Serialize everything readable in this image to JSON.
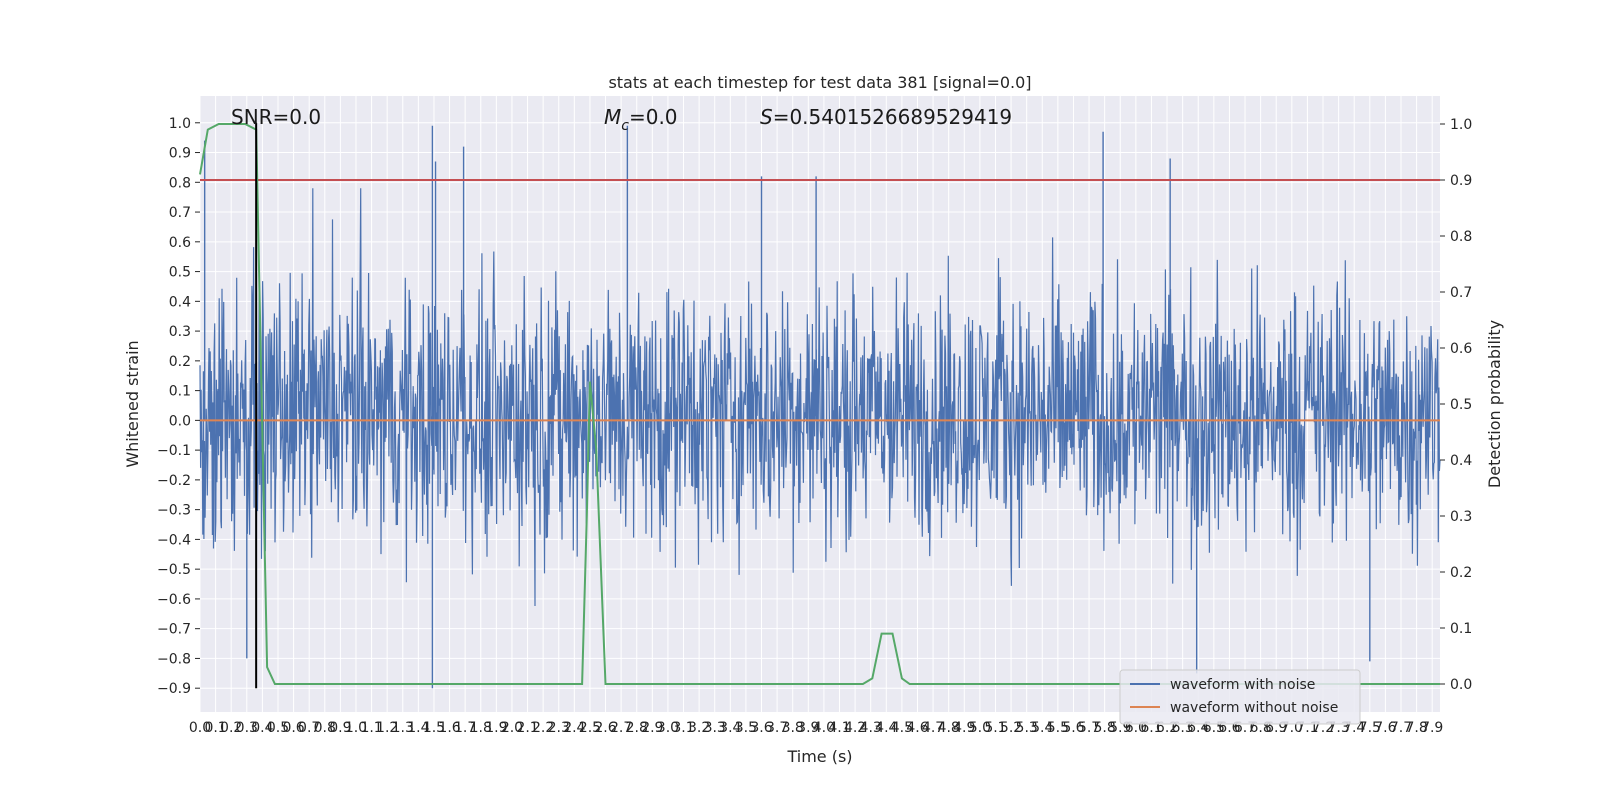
{
  "chart_data": {
    "type": "line",
    "title": "stats at each timestep for test data 381 [signal=0.0]",
    "xlabel": "Time (s)",
    "ylabel": "Whitened strain",
    "y2label": "Detection probability",
    "xlim": [
      0.0,
      7.95
    ],
    "ylim": [
      -0.98,
      1.09
    ],
    "y2lim": [
      -0.05,
      1.05
    ],
    "grid": true,
    "x_tick_labels": [
      "0.0",
      "0.1",
      "0.2",
      "0.3",
      "0.4",
      "0.5",
      "0.6",
      "0.7",
      "0.8",
      "0.9",
      "1.0",
      "1.1",
      "1.2",
      "1.3",
      "1.4",
      "1.5",
      "1.6",
      "1.7",
      "1.8",
      "1.9",
      "2.0",
      "2.1",
      "2.2",
      "2.3",
      "2.4",
      "2.5",
      "2.6",
      "2.7",
      "2.8",
      "2.9",
      "3.0",
      "3.1",
      "3.2",
      "3.3",
      "3.4",
      "3.5",
      "3.6",
      "3.7",
      "3.8",
      "3.9",
      "4.0",
      "4.1",
      "4.2",
      "4.3",
      "4.4",
      "4.5",
      "4.6",
      "4.7",
      "4.8",
      "4.9",
      "5.0",
      "5.1",
      "5.2",
      "5.3",
      "5.4",
      "5.5",
      "5.6",
      "5.7",
      "5.8",
      "5.9",
      "6.0",
      "6.1",
      "6.2",
      "6.3",
      "6.4",
      "6.5",
      "6.6",
      "6.7",
      "6.8",
      "6.9",
      "7.0",
      "7.1",
      "7.2",
      "7.3",
      "7.4",
      "7.5",
      "7.6",
      "7.7",
      "7.8",
      "7.9"
    ],
    "y_tick_labels": [
      "1.0",
      "0.9",
      "0.8",
      "0.7",
      "0.6",
      "0.5",
      "0.4",
      "0.3",
      "0.2",
      "0.1",
      "0.0",
      "−0.1",
      "−0.2",
      "−0.3",
      "−0.4",
      "−0.5",
      "−0.6",
      "−0.7",
      "−0.8",
      "−0.9"
    ],
    "y_ticks": [
      1.0,
      0.9,
      0.8,
      0.7,
      0.6,
      0.5,
      0.4,
      0.3,
      0.2,
      0.1,
      0.0,
      -0.1,
      -0.2,
      -0.3,
      -0.4,
      -0.5,
      -0.6,
      -0.7,
      -0.8,
      -0.9
    ],
    "y2_tick_labels": [
      "1.0",
      "0.9",
      "0.8",
      "0.7",
      "0.6",
      "0.5",
      "0.4",
      "0.3",
      "0.2",
      "0.1",
      "0.0"
    ],
    "y2_ticks": [
      1.0,
      0.9,
      0.8,
      0.7,
      0.6,
      0.5,
      0.4,
      0.3,
      0.2,
      0.1,
      0.0
    ],
    "annotations": {
      "snr": "SNR=0.0",
      "mc": "M",
      "mc_sub": "c",
      "mc_value": "=0.0",
      "s": "S",
      "s_value": "=0.5401526689529419"
    },
    "legend_position": "lower right",
    "series": [
      {
        "name": "waveform with noise",
        "color": "#4c72b0",
        "axis": "left",
        "description_peaks": [
          [
            0.03,
            0.94
          ],
          [
            1.49,
            0.99
          ],
          [
            1.51,
            0.87
          ],
          [
            1.69,
            0.92
          ],
          [
            2.74,
            0.99
          ],
          [
            3.6,
            0.82
          ],
          [
            3.95,
            0.82
          ],
          [
            5.79,
            0.97
          ],
          [
            6.22,
            0.88
          ],
          [
            1.49,
            -0.9
          ],
          [
            6.39,
            -0.85
          ],
          [
            7.5,
            -0.81
          ],
          [
            0.3,
            -0.8
          ]
        ],
        "upper_envelope": 0.55,
        "lower_envelope": -0.5
      },
      {
        "name": "waveform without noise",
        "color": "#dd8452",
        "axis": "left",
        "x": [
          0.0,
          7.95
        ],
        "y": [
          0.0,
          0.0
        ]
      },
      {
        "color": "#55a868",
        "axis": "right",
        "x": [
          0.0,
          0.05,
          0.12,
          0.2,
          0.29,
          0.36,
          0.43,
          0.48,
          2.4,
          2.45,
          2.48,
          2.5,
          2.54,
          2.6,
          2.65,
          4.25,
          4.31,
          4.37,
          4.44,
          4.5,
          4.55,
          7.95
        ],
        "y": [
          0.91,
          0.99,
          1.0,
          1.0,
          1.0,
          0.99,
          0.03,
          0.0,
          0.0,
          0.0,
          0.3,
          0.54,
          0.42,
          0.0,
          0.0,
          0.0,
          0.01,
          0.09,
          0.09,
          0.01,
          0.0,
          0.0
        ]
      },
      {
        "color": "#c44e52",
        "axis": "right",
        "x": [
          0.0,
          7.95
        ],
        "y": [
          0.9,
          0.9
        ]
      },
      {
        "color": "#000000",
        "axis": "left",
        "x": [
          0.36,
          0.36
        ],
        "y": [
          -0.9,
          1.0
        ]
      }
    ]
  }
}
